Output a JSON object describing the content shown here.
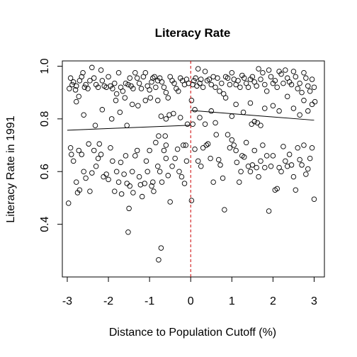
{
  "chart_data": {
    "type": "scatter",
    "title": "Literacy Rate",
    "xlabel": "Distance to Population Cutoff (%)",
    "ylabel": "Literacy Rate in 1991",
    "xlim": [
      -3.12,
      3.25
    ],
    "ylim": [
      0.2,
      1.02
    ],
    "xticks": [
      -3,
      -2,
      -1,
      0,
      1,
      2,
      3
    ],
    "xtick_labels": [
      "-3",
      "-2",
      "-1",
      "0",
      "1",
      "2",
      "3"
    ],
    "yticks": [
      0.4,
      0.6,
      0.8,
      1.0
    ],
    "ytick_labels": [
      "0.4",
      "0.6",
      "0.8",
      "1.0"
    ],
    "grid": false,
    "cutoff": {
      "x": 0,
      "color": "#cc0000",
      "style": "dashed"
    },
    "fit_lines": [
      {
        "x": [
          -3,
          0
        ],
        "y": [
          0.757,
          0.776
        ]
      },
      {
        "x": [
          0,
          3
        ],
        "y": [
          0.832,
          0.795
        ]
      }
    ],
    "points": [
      [
        -2.95,
        0.915
      ],
      [
        -2.92,
        0.955
      ],
      [
        -2.88,
        0.93
      ],
      [
        -2.85,
        0.94
      ],
      [
        -2.8,
        0.91
      ],
      [
        -2.78,
        0.925
      ],
      [
        -2.72,
        0.885
      ],
      [
        -2.7,
        0.945
      ],
      [
        -2.65,
        0.96
      ],
      [
        -2.62,
        0.975
      ],
      [
        -2.58,
        0.92
      ],
      [
        -2.55,
        0.93
      ],
      [
        -2.5,
        0.915
      ],
      [
        -2.45,
        0.945
      ],
      [
        -2.4,
        0.995
      ],
      [
        -2.35,
        0.955
      ],
      [
        -2.3,
        0.93
      ],
      [
        -2.25,
        0.92
      ],
      [
        -2.18,
        0.985
      ],
      [
        -2.15,
        0.945
      ],
      [
        -2.1,
        0.925
      ],
      [
        -2.05,
        0.92
      ],
      [
        -2.0,
        0.96
      ],
      [
        -1.95,
        0.925
      ],
      [
        -1.9,
        0.915
      ],
      [
        -1.85,
        0.935
      ],
      [
        -1.8,
        0.895
      ],
      [
        -1.75,
        0.975
      ],
      [
        -1.7,
        0.92
      ],
      [
        -1.65,
        0.905
      ],
      [
        -1.6,
        0.88
      ],
      [
        -1.58,
        0.935
      ],
      [
        -1.52,
        0.93
      ],
      [
        -1.48,
        0.955
      ],
      [
        -1.45,
        0.925
      ],
      [
        -1.4,
        0.915
      ],
      [
        -1.35,
        0.975
      ],
      [
        -1.3,
        0.955
      ],
      [
        -1.25,
        0.935
      ],
      [
        -1.2,
        0.915
      ],
      [
        -1.15,
        0.96
      ],
      [
        -1.1,
        0.975
      ],
      [
        -1.05,
        0.925
      ],
      [
        -1.0,
        0.91
      ],
      [
        -0.95,
        0.94
      ],
      [
        -0.92,
        0.955
      ],
      [
        -0.88,
        0.96
      ],
      [
        -0.85,
        0.92
      ],
      [
        -0.8,
        0.945
      ],
      [
        -0.75,
        0.955
      ],
      [
        -0.7,
        0.94
      ],
      [
        -0.65,
        0.92
      ],
      [
        -0.6,
        0.9
      ],
      [
        -0.55,
        0.88
      ],
      [
        -0.5,
        0.96
      ],
      [
        -0.45,
        0.945
      ],
      [
        -0.4,
        0.935
      ],
      [
        -0.35,
        0.915
      ],
      [
        -0.3,
        0.905
      ],
      [
        -0.25,
        0.955
      ],
      [
        -0.2,
        0.945
      ],
      [
        -0.15,
        0.93
      ],
      [
        -0.1,
        0.95
      ],
      [
        -0.05,
        0.935
      ],
      [
        -2.78,
        0.865
      ],
      [
        -2.6,
        0.815
      ],
      [
        -2.32,
        0.775
      ],
      [
        -2.15,
        0.835
      ],
      [
        -1.92,
        0.8
      ],
      [
        -1.82,
        0.87
      ],
      [
        -1.72,
        0.825
      ],
      [
        -1.55,
        0.775
      ],
      [
        -1.42,
        0.855
      ],
      [
        -1.28,
        0.85
      ],
      [
        -1.1,
        0.87
      ],
      [
        -0.98,
        0.88
      ],
      [
        -0.8,
        0.87
      ],
      [
        -0.6,
        0.8
      ],
      [
        -0.52,
        0.815
      ],
      [
        -0.42,
        0.82
      ],
      [
        -2.97,
        0.48
      ],
      [
        -2.92,
        0.69
      ],
      [
        -2.9,
        0.665
      ],
      [
        -2.85,
        0.64
      ],
      [
        -2.78,
        0.56
      ],
      [
        -2.75,
        0.52
      ],
      [
        -2.72,
        0.68
      ],
      [
        -2.7,
        0.53
      ],
      [
        -2.65,
        0.665
      ],
      [
        -2.6,
        0.6
      ],
      [
        -2.55,
        0.575
      ],
      [
        -2.48,
        0.705
      ],
      [
        -2.45,
        0.525
      ],
      [
        -2.4,
        0.595
      ],
      [
        -2.35,
        0.68
      ],
      [
        -2.3,
        0.62
      ],
      [
        -2.25,
        0.65
      ],
      [
        -2.22,
        0.705
      ],
      [
        -2.18,
        0.665
      ],
      [
        -2.12,
        0.58
      ],
      [
        -2.05,
        0.59
      ],
      [
        -2.0,
        0.57
      ],
      [
        -1.95,
        0.69
      ],
      [
        -1.9,
        0.64
      ],
      [
        -1.85,
        0.525
      ],
      [
        -1.8,
        0.6
      ],
      [
        -1.75,
        0.56
      ],
      [
        -1.7,
        0.635
      ],
      [
        -1.68,
        0.515
      ],
      [
        -1.62,
        0.59
      ],
      [
        -1.58,
        0.66
      ],
      [
        -1.55,
        0.555
      ],
      [
        -1.5,
        0.46
      ],
      [
        -1.48,
        0.545
      ],
      [
        -1.42,
        0.6
      ],
      [
        -1.4,
        0.52
      ],
      [
        -1.35,
        0.66
      ],
      [
        -1.3,
        0.68
      ],
      [
        -1.25,
        0.58
      ],
      [
        -1.22,
        0.55
      ],
      [
        -1.18,
        0.505
      ],
      [
        -1.12,
        0.555
      ],
      [
        -1.08,
        0.64
      ],
      [
        -1.05,
        0.6
      ],
      [
        -1.0,
        0.68
      ],
      [
        -0.95,
        0.545
      ],
      [
        -0.92,
        0.56
      ],
      [
        -0.9,
        0.525
      ],
      [
        -0.85,
        0.71
      ],
      [
        -0.8,
        0.62
      ],
      [
        -0.78,
        0.735
      ],
      [
        -0.75,
        0.6
      ],
      [
        -0.7,
        0.56
      ],
      [
        -0.65,
        0.68
      ],
      [
        -0.6,
        0.65
      ],
      [
        -0.55,
        0.585
      ],
      [
        -0.5,
        0.485
      ],
      [
        -0.45,
        0.62
      ],
      [
        -0.38,
        0.65
      ],
      [
        -0.32,
        0.685
      ],
      [
        -0.28,
        0.6
      ],
      [
        -0.22,
        0.58
      ],
      [
        -0.18,
        0.7
      ],
      [
        -0.15,
        0.555
      ],
      [
        -0.1,
        0.64
      ],
      [
        -1.52,
        0.37
      ],
      [
        -0.72,
        0.31
      ],
      [
        -0.78,
        0.265
      ],
      [
        -0.62,
        0.735
      ],
      [
        -0.6,
        0.7
      ],
      [
        -0.72,
        0.81
      ],
      [
        0.02,
        0.87
      ],
      [
        0.05,
        0.93
      ],
      [
        0.08,
        0.945
      ],
      [
        0.12,
        0.955
      ],
      [
        0.15,
        0.925
      ],
      [
        0.18,
        0.99
      ],
      [
        0.22,
        0.935
      ],
      [
        0.25,
        0.95
      ],
      [
        0.3,
        0.92
      ],
      [
        0.35,
        0.98
      ],
      [
        0.4,
        0.945
      ],
      [
        0.45,
        0.95
      ],
      [
        0.5,
        0.93
      ],
      [
        0.55,
        0.96
      ],
      [
        0.6,
        0.92
      ],
      [
        0.65,
        0.955
      ],
      [
        0.7,
        0.905
      ],
      [
        0.75,
        0.935
      ],
      [
        0.8,
        0.895
      ],
      [
        0.85,
        0.96
      ],
      [
        0.9,
        0.955
      ],
      [
        0.95,
        0.93
      ],
      [
        1.0,
        0.975
      ],
      [
        1.05,
        0.95
      ],
      [
        1.1,
        0.93
      ],
      [
        1.15,
        0.945
      ],
      [
        1.2,
        0.92
      ],
      [
        1.25,
        0.965
      ],
      [
        1.3,
        0.955
      ],
      [
        1.35,
        0.935
      ],
      [
        1.4,
        0.92
      ],
      [
        1.45,
        0.95
      ],
      [
        1.5,
        0.96
      ],
      [
        1.55,
        0.94
      ],
      [
        1.6,
        0.925
      ],
      [
        1.65,
        0.99
      ],
      [
        1.7,
        0.95
      ],
      [
        1.75,
        0.975
      ],
      [
        1.8,
        0.93
      ],
      [
        1.85,
        0.905
      ],
      [
        1.9,
        0.985
      ],
      [
        1.95,
        0.96
      ],
      [
        2.0,
        0.935
      ],
      [
        2.05,
        0.945
      ],
      [
        2.1,
        0.92
      ],
      [
        2.15,
        0.98
      ],
      [
        2.2,
        0.97
      ],
      [
        2.25,
        0.935
      ],
      [
        2.3,
        0.985
      ],
      [
        2.35,
        0.955
      ],
      [
        2.4,
        0.94
      ],
      [
        2.45,
        0.93
      ],
      [
        2.5,
        0.98
      ],
      [
        2.55,
        0.96
      ],
      [
        2.6,
        0.915
      ],
      [
        2.65,
        0.935
      ],
      [
        2.7,
        0.9
      ],
      [
        2.75,
        0.975
      ],
      [
        2.8,
        0.955
      ],
      [
        2.85,
        0.925
      ],
      [
        2.9,
        0.905
      ],
      [
        2.95,
        0.95
      ],
      [
        3.0,
        0.92
      ],
      [
        3.02,
        0.865
      ],
      [
        0.1,
        0.835
      ],
      [
        0.22,
        0.805
      ],
      [
        0.35,
        0.78
      ],
      [
        0.5,
        0.83
      ],
      [
        0.6,
        0.785
      ],
      [
        0.85,
        0.88
      ],
      [
        1.0,
        0.81
      ],
      [
        1.1,
        0.855
      ],
      [
        1.28,
        0.825
      ],
      [
        1.45,
        0.86
      ],
      [
        1.62,
        0.785
      ],
      [
        1.7,
        0.775
      ],
      [
        1.8,
        0.84
      ],
      [
        2.0,
        0.85
      ],
      [
        2.15,
        0.83
      ],
      [
        2.35,
        0.885
      ],
      [
        2.5,
        0.84
      ],
      [
        2.65,
        0.815
      ],
      [
        2.75,
        0.87
      ],
      [
        2.85,
        0.83
      ],
      [
        2.95,
        0.855
      ],
      [
        1.48,
        0.78
      ],
      [
        1.55,
        0.79
      ],
      [
        0.02,
        0.49
      ],
      [
        0.1,
        0.685
      ],
      [
        0.18,
        0.64
      ],
      [
        0.25,
        0.62
      ],
      [
        0.3,
        0.69
      ],
      [
        0.38,
        0.7
      ],
      [
        0.42,
        0.705
      ],
      [
        0.48,
        0.65
      ],
      [
        0.55,
        0.56
      ],
      [
        0.62,
        0.74
      ],
      [
        0.68,
        0.645
      ],
      [
        0.72,
        0.625
      ],
      [
        0.78,
        0.575
      ],
      [
        0.82,
        0.455
      ],
      [
        0.9,
        0.74
      ],
      [
        0.95,
        0.69
      ],
      [
        1.0,
        0.72
      ],
      [
        1.05,
        0.7
      ],
      [
        1.1,
        0.68
      ],
      [
        1.12,
        0.635
      ],
      [
        1.18,
        0.56
      ],
      [
        1.22,
        0.6
      ],
      [
        1.25,
        0.66
      ],
      [
        1.3,
        0.655
      ],
      [
        1.35,
        0.71
      ],
      [
        1.4,
        0.62
      ],
      [
        1.45,
        0.6
      ],
      [
        1.5,
        0.625
      ],
      [
        1.55,
        0.68
      ],
      [
        1.6,
        0.615
      ],
      [
        1.65,
        0.58
      ],
      [
        1.7,
        0.64
      ],
      [
        1.75,
        0.7
      ],
      [
        1.8,
        0.615
      ],
      [
        1.85,
        0.66
      ],
      [
        1.9,
        0.45
      ],
      [
        1.95,
        0.62
      ],
      [
        2.0,
        0.66
      ],
      [
        2.05,
        0.53
      ],
      [
        2.1,
        0.535
      ],
      [
        2.15,
        0.615
      ],
      [
        2.2,
        0.6
      ],
      [
        2.25,
        0.695
      ],
      [
        2.3,
        0.64
      ],
      [
        2.35,
        0.62
      ],
      [
        2.4,
        0.665
      ],
      [
        2.45,
        0.625
      ],
      [
        2.5,
        0.58
      ],
      [
        2.55,
        0.53
      ],
      [
        2.6,
        0.69
      ],
      [
        2.65,
        0.645
      ],
      [
        2.7,
        0.625
      ],
      [
        2.75,
        0.7
      ],
      [
        2.8,
        0.59
      ],
      [
        2.85,
        0.61
      ],
      [
        2.9,
        0.65
      ],
      [
        2.95,
        0.69
      ],
      [
        3.0,
        0.495
      ],
      [
        -0.12,
        0.7
      ],
      [
        -0.08,
        0.78
      ],
      [
        0.05,
        0.78
      ],
      [
        -0.25,
        0.805
      ]
    ]
  }
}
